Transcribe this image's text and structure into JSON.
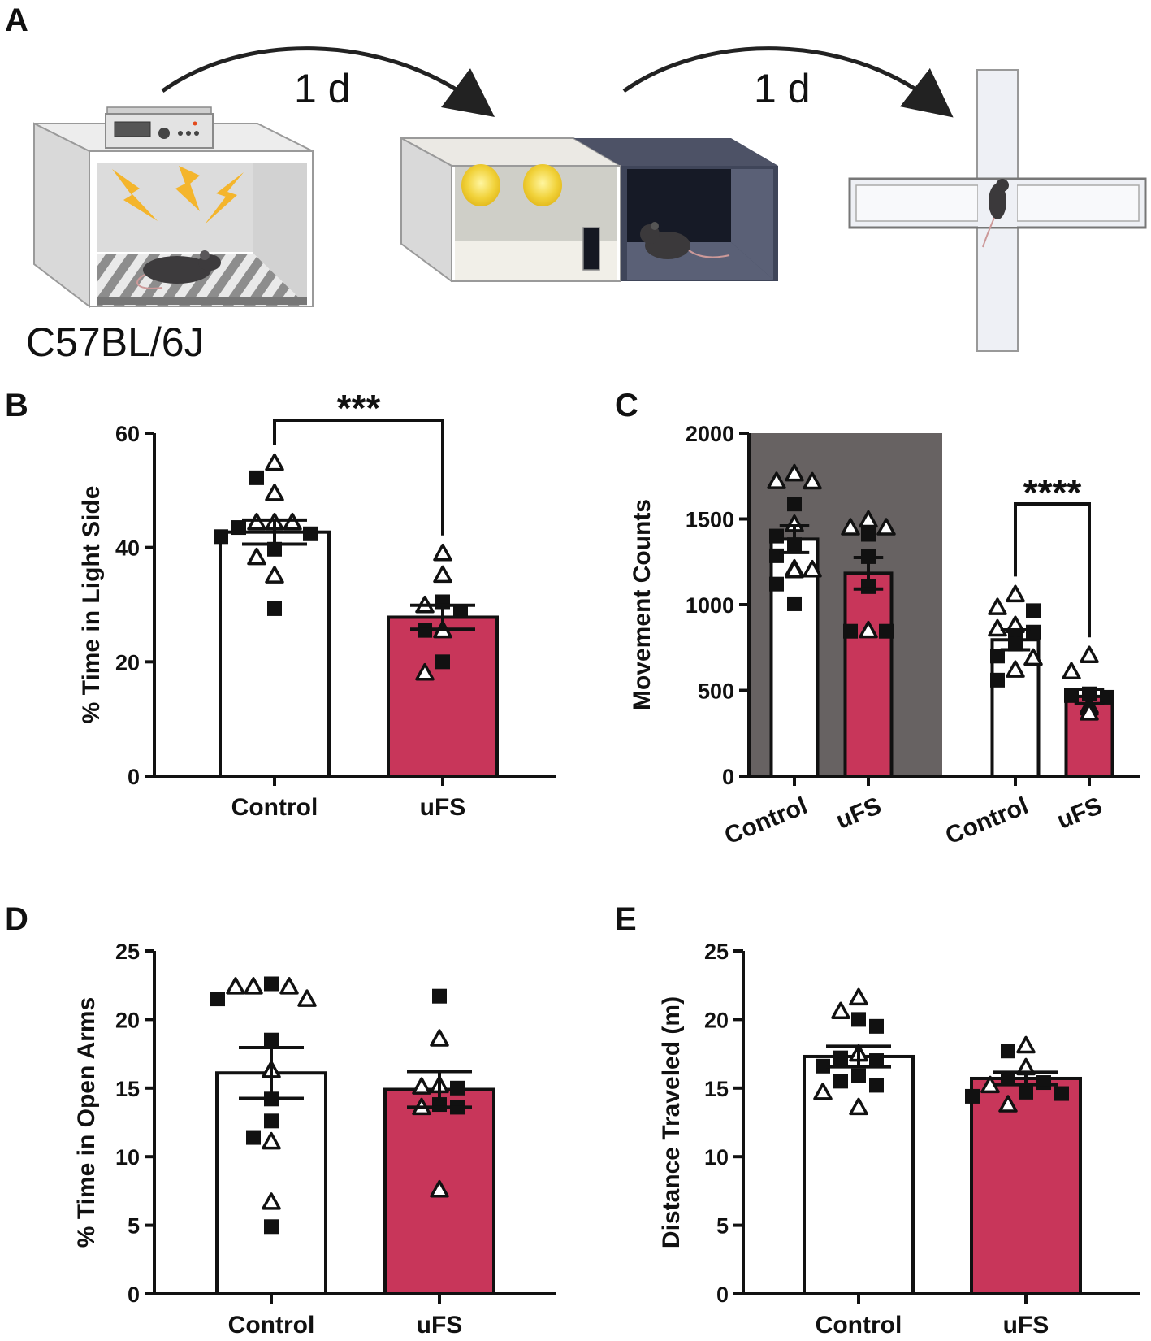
{
  "panel_letters": {
    "a": "A",
    "b": "B",
    "c": "C",
    "d": "D",
    "e": "E"
  },
  "schematic": {
    "strain": "C57BL/6J",
    "interval_1": "1 d",
    "interval_2": "1 d",
    "steps": [
      "shock-chamber",
      "light-dark-box",
      "elevated-plus-maze"
    ]
  },
  "colors": {
    "control": "#ffffff",
    "ufs": "#c8365a",
    "dark_phase": "#676262",
    "ink": "#111111"
  },
  "chart_data": [
    {
      "id": "B",
      "type": "bar",
      "categories": [
        "Control",
        "uFS"
      ],
      "values": [
        42.7,
        27.8
      ],
      "sem": [
        2.1,
        2.1
      ],
      "ylabel": "% Time in Light Side",
      "ylim": [
        0,
        60
      ],
      "yticks": [
        0,
        20,
        40,
        60
      ],
      "significance": {
        "between": [
          0,
          1
        ],
        "label": "***"
      },
      "points": [
        [
          {
            "v": 54.8,
            "m": "t"
          },
          {
            "v": 52.2,
            "m": "s"
          },
          {
            "v": 49.5,
            "m": "t"
          },
          {
            "v": 44.4,
            "m": "t"
          },
          {
            "v": 44.4,
            "m": "t"
          },
          {
            "v": 44.4,
            "m": "t"
          },
          {
            "v": 43.5,
            "m": "s"
          },
          {
            "v": 42.4,
            "m": "s"
          },
          {
            "v": 41.9,
            "m": "s"
          },
          {
            "v": 39.7,
            "m": "s"
          },
          {
            "v": 38.3,
            "m": "t"
          },
          {
            "v": 35.1,
            "m": "t"
          },
          {
            "v": 29.3,
            "m": "s"
          }
        ],
        [
          {
            "v": 39.0,
            "m": "t"
          },
          {
            "v": 35.2,
            "m": "t"
          },
          {
            "v": 30.5,
            "m": "s"
          },
          {
            "v": 29.9,
            "m": "t"
          },
          {
            "v": 28.8,
            "m": "s"
          },
          {
            "v": 25.5,
            "m": "t"
          },
          {
            "v": 25.5,
            "m": "s"
          },
          {
            "v": 20.0,
            "m": "s"
          },
          {
            "v": 18.1,
            "m": "t"
          }
        ]
      ]
    },
    {
      "id": "C",
      "type": "bar",
      "categories": [
        "Control",
        "uFS",
        "Control",
        "uFS"
      ],
      "values": [
        1382,
        1183,
        795,
        465
      ],
      "sem": [
        78,
        92,
        58,
        42
      ],
      "ylabel": "Movement Counts",
      "ylim": [
        0,
        2000
      ],
      "yticks": [
        0,
        500,
        1000,
        1500,
        2000
      ],
      "shaded_groups": [
        0,
        1
      ],
      "significance": {
        "between": [
          2,
          3
        ],
        "label": "****"
      },
      "points": [
        [
          {
            "v": 1765,
            "m": "t"
          },
          {
            "v": 1720,
            "m": "t"
          },
          {
            "v": 1718,
            "m": "t"
          },
          {
            "v": 1587,
            "m": "s"
          },
          {
            "v": 1470,
            "m": "t"
          },
          {
            "v": 1400,
            "m": "s"
          },
          {
            "v": 1350,
            "m": "s"
          },
          {
            "v": 1285,
            "m": "s"
          },
          {
            "v": 1210,
            "m": "t"
          },
          {
            "v": 1205,
            "m": "t"
          },
          {
            "v": 1200,
            "m": "t"
          },
          {
            "v": 1120,
            "m": "s"
          },
          {
            "v": 1005,
            "m": "s"
          }
        ],
        [
          {
            "v": 1495,
            "m": "t"
          },
          {
            "v": 1450,
            "m": "t"
          },
          {
            "v": 1450,
            "m": "t"
          },
          {
            "v": 1410,
            "m": "s"
          },
          {
            "v": 1280,
            "m": "s"
          },
          {
            "v": 1105,
            "m": "s"
          },
          {
            "v": 850,
            "m": "t"
          },
          {
            "v": 845,
            "m": "s"
          },
          {
            "v": 845,
            "m": "s"
          }
        ],
        [
          {
            "v": 1060,
            "m": "t"
          },
          {
            "v": 985,
            "m": "t"
          },
          {
            "v": 965,
            "m": "s"
          },
          {
            "v": 880,
            "m": "t"
          },
          {
            "v": 860,
            "m": "t"
          },
          {
            "v": 840,
            "m": "s"
          },
          {
            "v": 820,
            "m": "s"
          },
          {
            "v": 770,
            "m": "s"
          },
          {
            "v": 770,
            "m": "s"
          },
          {
            "v": 700,
            "m": "s"
          },
          {
            "v": 690,
            "m": "t"
          },
          {
            "v": 620,
            "m": "t"
          },
          {
            "v": 560,
            "m": "s"
          }
        ],
        [
          {
            "v": 705,
            "m": "t"
          },
          {
            "v": 610,
            "m": "t"
          },
          {
            "v": 480,
            "m": "s"
          },
          {
            "v": 470,
            "m": "s"
          },
          {
            "v": 460,
            "m": "s"
          },
          {
            "v": 410,
            "m": "t"
          },
          {
            "v": 400,
            "m": "t"
          },
          {
            "v": 370,
            "m": "t"
          }
        ]
      ]
    },
    {
      "id": "D",
      "type": "bar",
      "categories": [
        "Control",
        "uFS"
      ],
      "values": [
        16.1,
        14.9
      ],
      "sem": [
        1.85,
        1.3
      ],
      "ylabel": "% Time in Open Arms",
      "ylim": [
        0,
        25
      ],
      "yticks": [
        0,
        5,
        10,
        15,
        20,
        25
      ],
      "points": [
        [
          {
            "v": 22.6,
            "m": "s"
          },
          {
            "v": 22.4,
            "m": "t"
          },
          {
            "v": 22.4,
            "m": "t"
          },
          {
            "v": 22.4,
            "m": "t"
          },
          {
            "v": 21.5,
            "m": "t"
          },
          {
            "v": 21.5,
            "m": "s"
          },
          {
            "v": 18.5,
            "m": "s"
          },
          {
            "v": 16.3,
            "m": "t"
          },
          {
            "v": 14.2,
            "m": "s"
          },
          {
            "v": 12.6,
            "m": "s"
          },
          {
            "v": 11.4,
            "m": "s"
          },
          {
            "v": 11.1,
            "m": "t"
          },
          {
            "v": 6.7,
            "m": "t"
          },
          {
            "v": 4.9,
            "m": "s"
          }
        ],
        [
          {
            "v": 21.7,
            "m": "s"
          },
          {
            "v": 18.6,
            "m": "t"
          },
          {
            "v": 15.2,
            "m": "t"
          },
          {
            "v": 15.1,
            "m": "t"
          },
          {
            "v": 15.0,
            "m": "s"
          },
          {
            "v": 13.8,
            "m": "s"
          },
          {
            "v": 13.6,
            "m": "t"
          },
          {
            "v": 13.6,
            "m": "s"
          },
          {
            "v": 7.6,
            "m": "t"
          }
        ]
      ]
    },
    {
      "id": "E",
      "type": "bar",
      "categories": [
        "Control",
        "uFS"
      ],
      "values": [
        17.3,
        15.7
      ],
      "sem": [
        0.75,
        0.45
      ],
      "ylabel": "Distance Traveled (m)",
      "ylim": [
        0,
        25
      ],
      "yticks": [
        0,
        5,
        10,
        15,
        20,
        25
      ],
      "points": [
        [
          {
            "v": 21.6,
            "m": "t"
          },
          {
            "v": 20.6,
            "m": "t"
          },
          {
            "v": 20.0,
            "m": "s"
          },
          {
            "v": 19.5,
            "m": "s"
          },
          {
            "v": 17.5,
            "m": "t"
          },
          {
            "v": 17.2,
            "m": "s"
          },
          {
            "v": 17.0,
            "m": "s"
          },
          {
            "v": 16.6,
            "m": "s"
          },
          {
            "v": 15.9,
            "m": "s"
          },
          {
            "v": 15.5,
            "m": "s"
          },
          {
            "v": 15.2,
            "m": "s"
          },
          {
            "v": 14.7,
            "m": "t"
          },
          {
            "v": 13.6,
            "m": "t"
          }
        ],
        [
          {
            "v": 18.1,
            "m": "t"
          },
          {
            "v": 17.7,
            "m": "s"
          },
          {
            "v": 16.5,
            "m": "t"
          },
          {
            "v": 15.7,
            "m": "s"
          },
          {
            "v": 15.4,
            "m": "s"
          },
          {
            "v": 15.2,
            "m": "t"
          },
          {
            "v": 14.7,
            "m": "s"
          },
          {
            "v": 14.6,
            "m": "s"
          },
          {
            "v": 14.4,
            "m": "s"
          },
          {
            "v": 13.8,
            "m": "t"
          }
        ]
      ]
    }
  ]
}
